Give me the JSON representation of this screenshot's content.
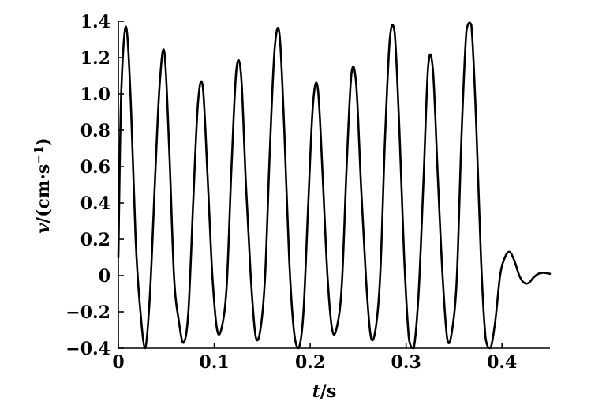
{
  "chart_data": {
    "type": "line",
    "title": "",
    "xlabel": {
      "var": "t",
      "unit": "/s"
    },
    "ylabel": {
      "var": "v",
      "unit_prefix": "/(cm·s",
      "unit_exp": "−1",
      "unit_suffix": ")"
    },
    "xlim": [
      0,
      0.45
    ],
    "ylim": [
      -0.4,
      1.4
    ],
    "grid": false,
    "legend": "none",
    "x_ticks": [
      0,
      0.1,
      0.2,
      0.3,
      0.4
    ],
    "x_tick_labels": [
      "0",
      "0.1",
      "0.2",
      "0.3",
      "0.4"
    ],
    "y_ticks": [
      -0.4,
      -0.2,
      0,
      0.2,
      0.4,
      0.6,
      0.8,
      1.0,
      1.2,
      1.4
    ],
    "y_tick_labels": [
      "−0.4",
      "−0.2",
      "0",
      "0.2",
      "0.4",
      "0.6",
      "0.8",
      "1.0",
      "1.2",
      "1.4"
    ],
    "line_color": "#000000",
    "series": [
      {
        "x": [
          0,
          0.003,
          0.008,
          0.013,
          0.018,
          0.023,
          0.028,
          0.033,
          0.038,
          0.043,
          0.048,
          0.053,
          0.058,
          0.063,
          0.068,
          0.073,
          0.078,
          0.083,
          0.088,
          0.093,
          0.098,
          0.103,
          0.108,
          0.113,
          0.118,
          0.123,
          0.128,
          0.133,
          0.138,
          0.143,
          0.148,
          0.153,
          0.158,
          0.163,
          0.168,
          0.173,
          0.178,
          0.183,
          0.188,
          0.193,
          0.198,
          0.203,
          0.208,
          0.213,
          0.218,
          0.223,
          0.228,
          0.233,
          0.238,
          0.243,
          0.248,
          0.253,
          0.258,
          0.263,
          0.268,
          0.273,
          0.278,
          0.283,
          0.288,
          0.293,
          0.298,
          0.303,
          0.308,
          0.313,
          0.318,
          0.323,
          0.328,
          0.333,
          0.338,
          0.343,
          0.348,
          0.353,
          0.358,
          0.363,
          0.368,
          0.373,
          0.378,
          0.383,
          0.388,
          0.393,
          0.398,
          0.403,
          0.408,
          0.413,
          0.418,
          0.423,
          0.428,
          0.433,
          0.438,
          0.443,
          0.45
        ],
        "y": [
          0.1,
          1.0,
          1.37,
          0.95,
          0.2,
          -0.2,
          -0.4,
          -0.1,
          0.5,
          1.05,
          1.23,
          0.7,
          0.0,
          -0.25,
          -0.37,
          -0.2,
          0.4,
          0.95,
          1.04,
          0.55,
          0.0,
          -0.3,
          -0.28,
          -0.05,
          0.6,
          1.13,
          1.1,
          0.5,
          0.0,
          -0.33,
          -0.3,
          0.0,
          0.7,
          1.25,
          1.33,
          0.8,
          0.1,
          -0.3,
          -0.41,
          -0.2,
          0.4,
          0.95,
          1.03,
          0.55,
          0.0,
          -0.3,
          -0.28,
          -0.05,
          0.6,
          1.11,
          1.05,
          0.5,
          0.0,
          -0.33,
          -0.3,
          0.0,
          0.75,
          1.3,
          1.34,
          0.8,
          0.1,
          -0.35,
          -0.42,
          -0.1,
          0.5,
          1.15,
          1.13,
          0.55,
          0.0,
          -0.35,
          -0.3,
          0.0,
          0.8,
          1.35,
          1.38,
          0.85,
          0.1,
          -0.35,
          -0.42,
          -0.25,
          0.0,
          0.1,
          0.13,
          0.08,
          0.0,
          -0.04,
          -0.04,
          -0.01,
          0.01,
          0.015,
          0.01
        ]
      }
    ]
  }
}
